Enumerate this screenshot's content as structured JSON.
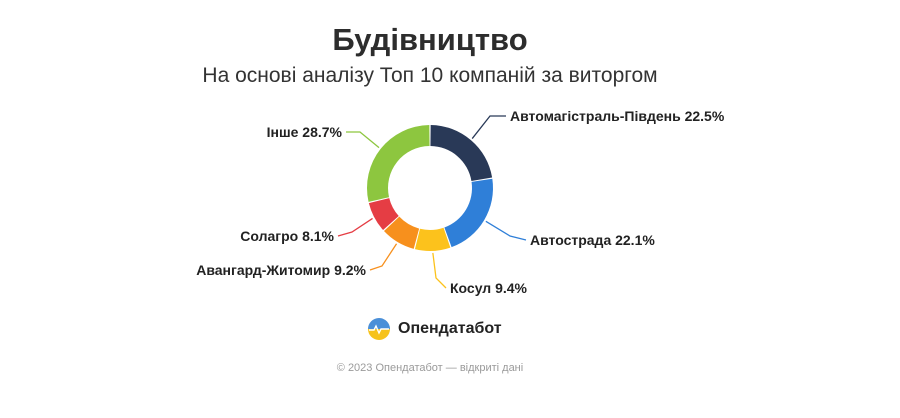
{
  "chart_data": {
    "type": "pie",
    "title": "Будівництво",
    "subtitle": "На основі аналізу Топ 10 компаній за виторгом",
    "slices": [
      {
        "label": "Автомагістраль-Південь",
        "value": 22.5,
        "value_label": "22.5%",
        "color": "#293957"
      },
      {
        "label": "Автострада",
        "value": 22.1,
        "value_label": "22.1%",
        "color": "#2f7fd8"
      },
      {
        "label": "Косул",
        "value": 9.4,
        "value_label": "9.4%",
        "color": "#fcc21c"
      },
      {
        "label": "Авангард-Житомир",
        "value": 9.2,
        "value_label": "9.2%",
        "color": "#f7901d"
      },
      {
        "label": "Солагро",
        "value": 8.1,
        "value_label": "8.1%",
        "color": "#e53d44"
      },
      {
        "label": "Інше",
        "value": 28.7,
        "value_label": "28.7%",
        "color": "#8dc63f"
      }
    ],
    "donut": true
  },
  "brand": {
    "name": "Опендатабот"
  },
  "footer": {
    "text": "© 2023 Опендатабот — відкриті дані"
  }
}
